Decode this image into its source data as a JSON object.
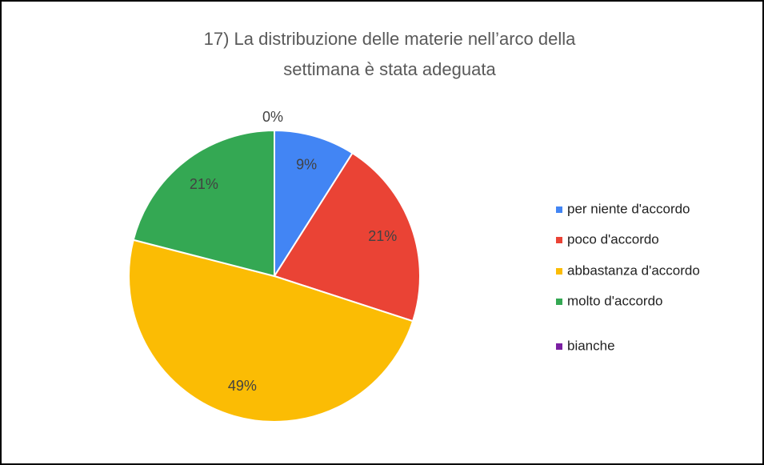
{
  "chart_data": {
    "type": "pie",
    "title": [
      "17) La distribuzione delle materie nell’arco della",
      "settimana è stata adeguata"
    ],
    "categories": [
      "per niente d'accordo",
      "poco d'accordo",
      "abbastanza d'accordo",
      "molto d'accordo",
      "bianche"
    ],
    "values": [
      9,
      21,
      49,
      21,
      0
    ],
    "colors": [
      "#4285f4",
      "#ea4335",
      "#fbbc04",
      "#34a853",
      "#7b1fa2"
    ],
    "legend": "right"
  }
}
